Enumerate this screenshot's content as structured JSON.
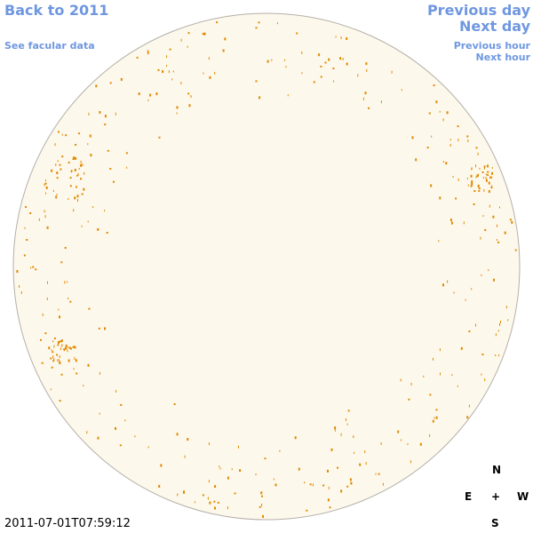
{
  "links": {
    "back": "Back to 2011",
    "facular": "See facular data",
    "previous_day": "Previous day",
    "next_day": "Next day",
    "previous_hour": "Previous hour",
    "next_hour": "Next hour"
  },
  "timestamp": "2011-07-01T07:59:12",
  "compass": {
    "north": "N",
    "east": "E",
    "center": "+",
    "west": "W",
    "south": "S"
  }
}
